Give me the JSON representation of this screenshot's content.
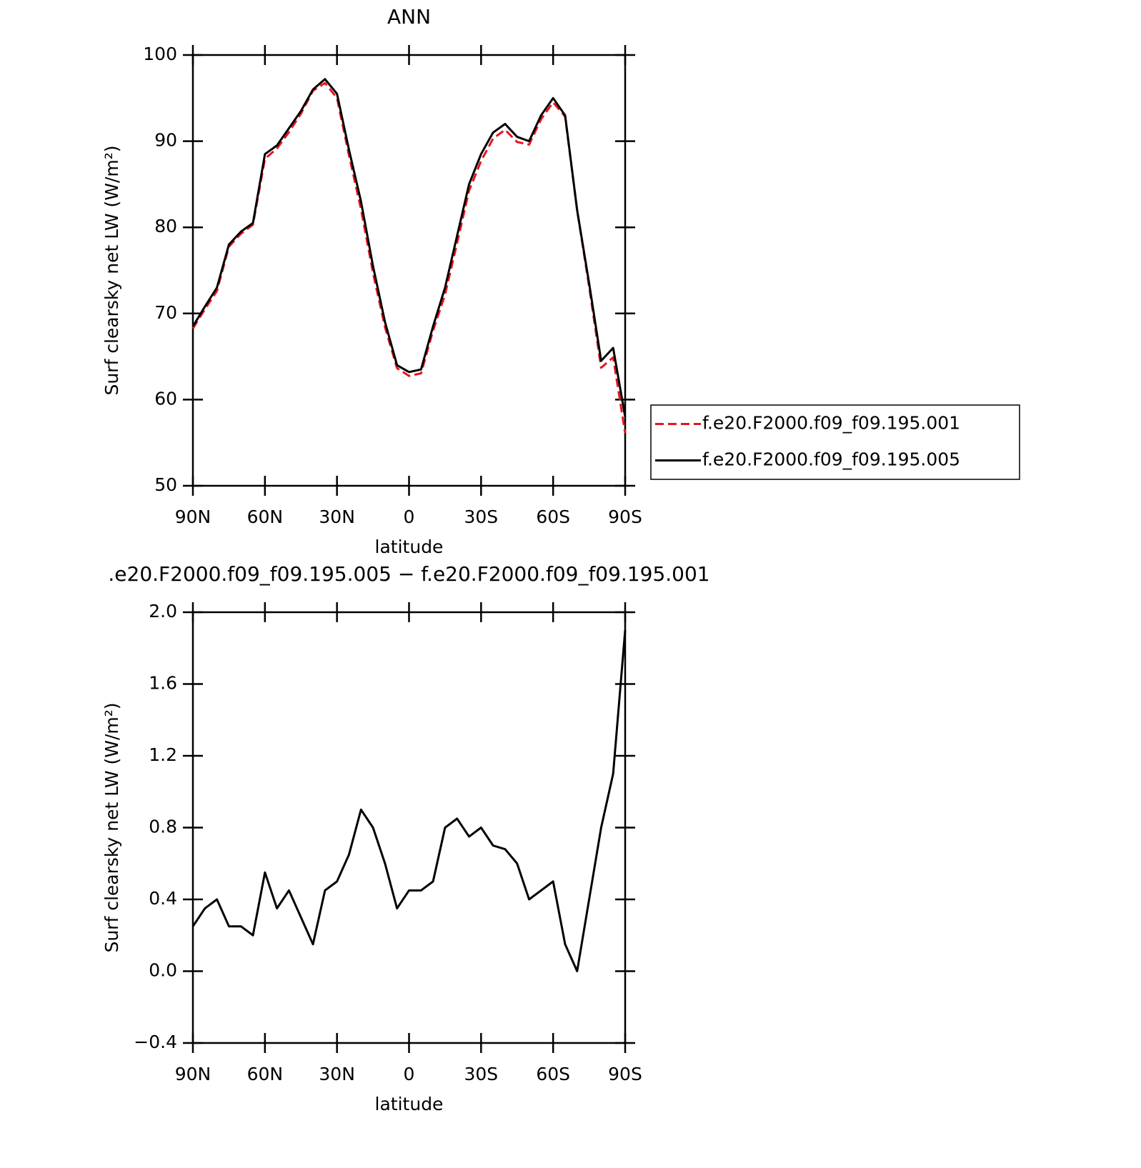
{
  "chart_data": [
    {
      "type": "line",
      "title": "ANN",
      "xlabel": "latitude",
      "ylabel": "Surf clearsky net LW (W/m²)",
      "x": [
        90,
        85,
        80,
        75,
        70,
        65,
        60,
        55,
        50,
        45,
        40,
        35,
        30,
        25,
        20,
        15,
        10,
        5,
        0,
        -5,
        -10,
        -15,
        -20,
        -25,
        -30,
        -35,
        -40,
        -45,
        -50,
        -55,
        -60,
        -65,
        -70,
        -75,
        -80,
        -85,
        -90
      ],
      "series": [
        {
          "name": "f.e20.F2000.f09_f09.195.001",
          "color": "#e8141c",
          "linestyle": "dashed",
          "values": [
            68.25,
            70.5,
            72.6,
            77.75,
            79.25,
            80.3,
            87.95,
            89.15,
            91.05,
            93.2,
            95.85,
            96.75,
            95.0,
            88.35,
            82.1,
            74.7,
            68.4,
            63.65,
            62.75,
            63.05,
            68.0,
            72.2,
            78.15,
            84.25,
            87.7,
            90.3,
            91.32,
            89.9,
            89.6,
            92.55,
            94.5,
            92.85,
            82.0,
            73.1,
            63.7,
            64.9,
            56.1
          ]
        },
        {
          "name": "f.e20.F2000.f09_f09.195.005",
          "color": "#000000",
          "linestyle": "solid",
          "values": [
            68.5,
            70.8,
            73,
            78,
            79.5,
            80.5,
            88.5,
            89.5,
            91.5,
            93.5,
            96,
            97.2,
            95.5,
            89,
            83,
            75.5,
            69,
            64,
            63.2,
            63.5,
            68.5,
            73,
            79,
            85,
            88.5,
            91,
            92,
            90.5,
            90,
            93,
            95,
            93,
            82,
            73.5,
            64.5,
            66,
            58
          ]
        }
      ],
      "xlim": [
        90,
        -90
      ],
      "xticks": [
        {
          "value": 90,
          "label": "90N"
        },
        {
          "value": 60,
          "label": "60N"
        },
        {
          "value": 30,
          "label": "30N"
        },
        0,
        {
          "value": -30,
          "label": "30S"
        },
        {
          "value": -60,
          "label": "60S"
        },
        {
          "value": -90,
          "label": "90S"
        }
      ],
      "ylim": [
        50,
        100
      ],
      "yticks": [
        50,
        60,
        70,
        80,
        90,
        100
      ],
      "legend": "right"
    },
    {
      "type": "line",
      "title": ".e20.F2000.f09_f09.195.005 − f.e20.F2000.f09_f09.195.001",
      "xlabel": "latitude",
      "ylabel": "Surf clearsky net LW (W/m²)",
      "x": [
        90,
        85,
        80,
        75,
        70,
        65,
        60,
        55,
        50,
        45,
        40,
        35,
        30,
        25,
        20,
        15,
        10,
        5,
        0,
        -5,
        -10,
        -15,
        -20,
        -25,
        -30,
        -35,
        -40,
        -45,
        -50,
        -55,
        -60,
        -65,
        -70,
        -75,
        -80,
        -85,
        -90
      ],
      "series": [
        {
          "color": "#000000",
          "linestyle": "solid",
          "values": [
            0.25,
            0.35,
            0.4,
            0.25,
            0.25,
            0.2,
            0.55,
            0.35,
            0.45,
            0.3,
            0.15,
            0.45,
            0.5,
            0.65,
            0.9,
            0.8,
            0.6,
            0.35,
            0.45,
            0.45,
            0.5,
            0.8,
            0.85,
            0.75,
            0.8,
            0.7,
            0.68,
            0.6,
            0.4,
            0.45,
            0.5,
            0.15,
            0.0,
            0.4,
            0.8,
            1.1,
            1.9
          ]
        }
      ],
      "xlim": [
        90,
        -90
      ],
      "xticks": [
        {
          "value": 90,
          "label": "90N"
        },
        {
          "value": 60,
          "label": "60N"
        },
        {
          "value": 30,
          "label": "30N"
        },
        0,
        {
          "value": -30,
          "label": "30S"
        },
        {
          "value": -60,
          "label": "60S"
        },
        {
          "value": -90,
          "label": "90S"
        }
      ],
      "ylim": [
        -0.4,
        2.0
      ],
      "yticks": [
        {
          "value": -0.4,
          "label": "−0.4"
        },
        {
          "value": 0,
          "label": "0.0"
        },
        0.4,
        0.8,
        1.2,
        1.6,
        {
          "value": 2.0,
          "label": "2.0"
        }
      ]
    }
  ]
}
